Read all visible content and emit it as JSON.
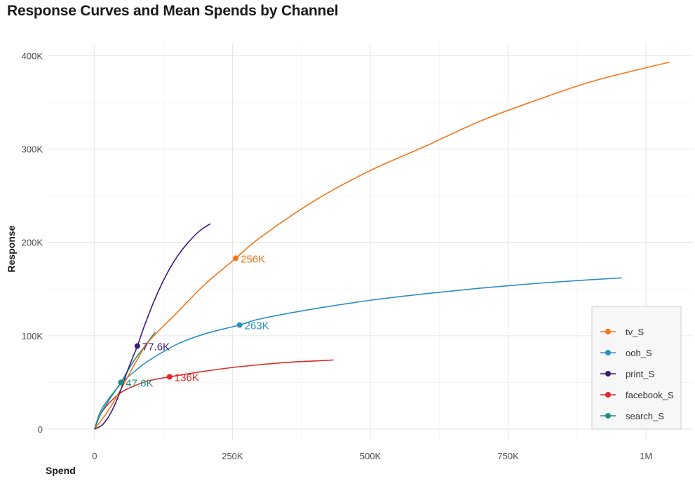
{
  "chart_data": {
    "type": "line",
    "title": "Response Curves and Mean Spends by Channel",
    "xlabel": "Spend",
    "ylabel": "Response",
    "xlim": [
      -85000,
      1085000
    ],
    "ylim": [
      -12000,
      413000
    ],
    "x_ticks": [
      {
        "value": 0,
        "label": "0"
      },
      {
        "value": 250000,
        "label": "250K"
      },
      {
        "value": 500000,
        "label": "500K"
      },
      {
        "value": 750000,
        "label": "750K"
      },
      {
        "value": 1000000,
        "label": "1M"
      }
    ],
    "y_ticks": [
      {
        "value": 0,
        "label": "0"
      },
      {
        "value": 100000,
        "label": "100K"
      },
      {
        "value": 200000,
        "label": "200K"
      },
      {
        "value": 300000,
        "label": "300K"
      },
      {
        "value": 400000,
        "label": "400K"
      }
    ],
    "grid": true,
    "legend_position": "bottom-right",
    "series": [
      {
        "name": "tv_S",
        "color": "#F5761A",
        "x": [
          0,
          25000,
          50000,
          75000,
          100000,
          150000,
          200000,
          256000,
          300000,
          400000,
          500000,
          600000,
          700000,
          800000,
          900000,
          1000000,
          1043000
        ],
        "y": [
          0,
          20000,
          45000,
          72000,
          95000,
          125000,
          155000,
          183000,
          205000,
          245000,
          277000,
          303000,
          330000,
          352000,
          372000,
          387000,
          393000
        ],
        "mean": {
          "x": 256000,
          "y": 183000,
          "label": "256K"
        }
      },
      {
        "name": "ooh_S",
        "color": "#2B8FC6",
        "x": [
          0,
          10000,
          25000,
          50000,
          75000,
          100000,
          150000,
          200000,
          263000,
          300000,
          400000,
          500000,
          600000,
          700000,
          800000,
          900000,
          956000
        ],
        "y": [
          0,
          18000,
          32000,
          50000,
          63000,
          74000,
          91000,
          102000,
          111500,
          118000,
          129000,
          138000,
          145000,
          151000,
          156000,
          160000,
          162000
        ],
        "mean": {
          "x": 263000,
          "y": 111500,
          "label": "263K"
        }
      },
      {
        "name": "print_S",
        "color": "#3C1A7A",
        "x": [
          0,
          15000,
          30000,
          45000,
          60000,
          77600,
          90000,
          110000,
          130000,
          150000,
          170000,
          190000,
          210000
        ],
        "y": [
          0,
          5000,
          18000,
          38000,
          63000,
          89000,
          110000,
          140000,
          165000,
          185000,
          200000,
          212000,
          220000
        ],
        "mean": {
          "x": 77600,
          "y": 89000,
          "label": "77.6K"
        }
      },
      {
        "name": "facebook_S",
        "color": "#E02828",
        "x": [
          0,
          10000,
          25000,
          50000,
          75000,
          100000,
          136000,
          200000,
          250000,
          300000,
          350000,
          400000,
          433000
        ],
        "y": [
          0,
          15000,
          27000,
          40000,
          47000,
          52000,
          56000,
          62000,
          66000,
          69000,
          71500,
          73000,
          74000
        ],
        "mean": {
          "x": 136000,
          "y": 56000,
          "label": "136K"
        }
      },
      {
        "name": "search_S",
        "color": "#1F8F80",
        "x": [
          0,
          10000,
          25000,
          47600,
          70000,
          90000,
          110000
        ],
        "y": [
          0,
          15000,
          30000,
          50000,
          72000,
          88000,
          104000
        ],
        "mean": {
          "x": 47600,
          "y": 50000,
          "label": "47.6K"
        }
      }
    ]
  }
}
